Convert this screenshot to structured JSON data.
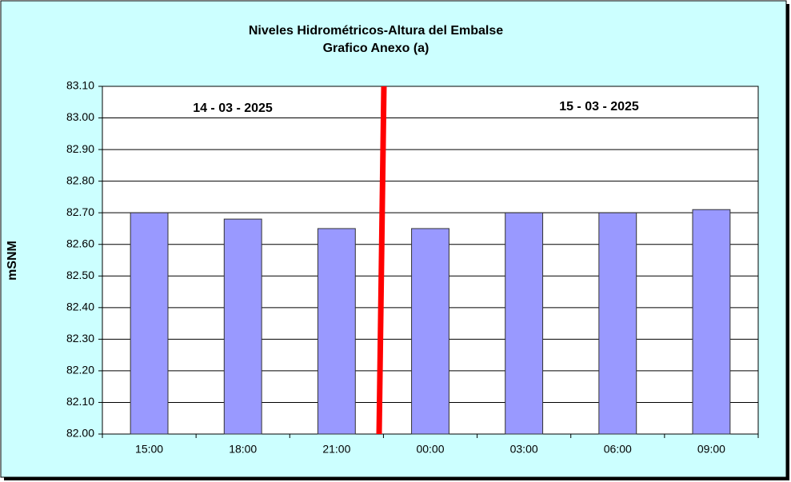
{
  "chart_data": {
    "type": "bar",
    "title": "Niveles Hidrométricos-Altura del Embalse",
    "subtitle": "Grafico Anexo (a)",
    "y_label": "mSNM",
    "annotations": [
      "14 - 03 - 2025",
      "15 - 03 - 2025"
    ],
    "categories": [
      "15:00",
      "18:00",
      "21:00",
      "00:00",
      "03:00",
      "06:00",
      "09:00"
    ],
    "values": [
      82.7,
      82.68,
      82.65,
      82.65,
      82.7,
      82.7,
      82.71
    ],
    "color": "#9999ff",
    "ylim": [
      82.0,
      83.1
    ],
    "yticks": [
      {
        "value": 82.0,
        "label": "82.00"
      },
      {
        "value": 82.1,
        "label": "82.10"
      },
      {
        "value": 82.2,
        "label": "82.20"
      },
      {
        "value": 82.3,
        "label": "82.30"
      },
      {
        "value": 82.4,
        "label": "82.40"
      },
      {
        "value": 82.5,
        "label": "82.50"
      },
      {
        "value": 82.6,
        "label": "82.60"
      },
      {
        "value": 82.7,
        "label": "82.70"
      },
      {
        "value": 82.8,
        "label": "82.80"
      },
      {
        "value": 82.9,
        "label": "82.90"
      },
      {
        "value": 83.0,
        "label": "83.00"
      },
      {
        "value": 83.1,
        "label": "83.10"
      }
    ],
    "grid": true
  }
}
